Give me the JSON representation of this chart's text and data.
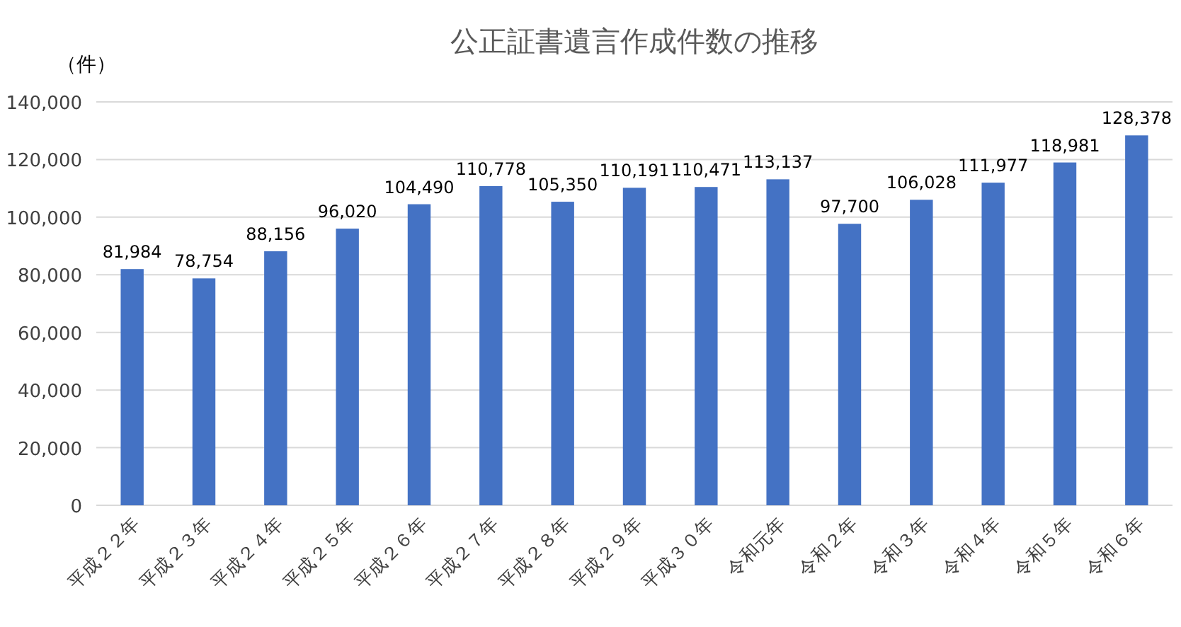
{
  "chart_data": {
    "type": "bar",
    "title": "公正証書遺言作成件数の推移",
    "ylabel": "（件）",
    "categories": [
      "平成２２年",
      "平成２３年",
      "平成２４年",
      "平成２５年",
      "平成２６年",
      "平成２７年",
      "平成２８年",
      "平成２９年",
      "平成３０年",
      "令和元年",
      "令和２年",
      "令和３年",
      "令和４年",
      "令和５年",
      "令和６年"
    ],
    "values": [
      81984,
      78754,
      88156,
      96020,
      104490,
      110778,
      105350,
      110191,
      110471,
      113137,
      97700,
      106028,
      111977,
      118981,
      128378
    ],
    "color": "#4472c4",
    "ylim": [
      0,
      140000
    ],
    "yticks": [
      {
        "value": 0,
        "label": "0"
      },
      {
        "value": 20000,
        "label": "20,000"
      },
      {
        "value": 40000,
        "label": "40,000"
      },
      {
        "value": 60000,
        "label": "60,000"
      },
      {
        "value": 80000,
        "label": "80,000"
      },
      {
        "value": 100000,
        "label": "100,000"
      },
      {
        "value": 120000,
        "label": "120,000"
      },
      {
        "value": 140000,
        "label": "140,000"
      }
    ],
    "value_labels": [
      "81,984",
      "78,754",
      "88,156",
      "96,020",
      "104,490",
      "110,778",
      "105,350",
      "110,191",
      "110,471",
      "113,137",
      "97,700",
      "106,028",
      "111,977",
      "118,981",
      "128,378"
    ],
    "grid": "y"
  }
}
